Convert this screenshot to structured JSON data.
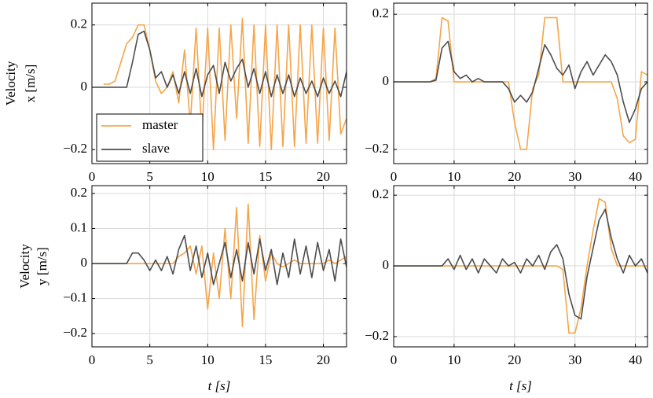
{
  "chart_data": [
    {
      "type": "line",
      "ylabel": [
        "Velocity",
        "x [m/s]"
      ],
      "legend": "lower left",
      "grid": true,
      "xlim": [
        0,
        22
      ],
      "xticks": [
        0,
        5,
        10,
        15,
        20
      ],
      "ylim": [
        -0.245,
        0.27
      ],
      "yticks": [
        {
          "value": -0.2,
          "label": "−0.2"
        },
        0,
        0.2
      ],
      "x": [
        0,
        0.5,
        1,
        1.5,
        2,
        2.5,
        3,
        3.5,
        4,
        4.5,
        5,
        5.5,
        6,
        6.5,
        7,
        7.5,
        8,
        8.5,
        9,
        9.5,
        10,
        10.5,
        11,
        11.5,
        12,
        12.5,
        13,
        13.5,
        14,
        14.5,
        15,
        15.5,
        16,
        16.5,
        17,
        17.5,
        18,
        18.5,
        19,
        19.5,
        20,
        20.5,
        21,
        21.5,
        22
      ],
      "series": [
        {
          "name": "master",
          "color": "#f5a54a",
          "values": [
            null,
            null,
            0.01,
            0.01,
            0.02,
            0.08,
            0.14,
            0.16,
            0.2,
            0.2,
            0.12,
            0.02,
            -0.02,
            0.0,
            0.05,
            -0.05,
            0.12,
            -0.12,
            0.19,
            -0.15,
            0.19,
            -0.2,
            0.19,
            -0.17,
            0.2,
            -0.1,
            0.22,
            -0.18,
            0.2,
            -0.19,
            0.2,
            -0.2,
            0.2,
            -0.19,
            0.2,
            -0.19,
            0.2,
            -0.18,
            0.2,
            -0.18,
            0.19,
            -0.17,
            0.19,
            -0.15,
            -0.1
          ]
        },
        {
          "name": "slave",
          "color": "#4d4d4d",
          "values": [
            0,
            0,
            0,
            0,
            0,
            0,
            0,
            0.08,
            0.17,
            0.18,
            0.12,
            0.03,
            0.05,
            0.0,
            0.04,
            -0.02,
            0.05,
            -0.02,
            0.06,
            -0.03,
            0.04,
            0.07,
            -0.02,
            0.08,
            0.02,
            0.06,
            0.09,
            0.0,
            0.06,
            -0.02,
            0.05,
            -0.03,
            0.04,
            -0.02,
            0.04,
            -0.03,
            0.03,
            -0.02,
            0.02,
            -0.03,
            0.03,
            -0.02,
            0.02,
            -0.03,
            0.05
          ]
        }
      ]
    },
    {
      "type": "line",
      "grid": true,
      "xlim": [
        0,
        42
      ],
      "xticks": [
        0,
        10,
        20,
        30,
        40
      ],
      "ylim": [
        -0.242,
        0.233
      ],
      "yticks": [
        {
          "value": -0.2,
          "label": "−0.2"
        },
        0,
        0.2
      ],
      "x": [
        0,
        1,
        2,
        3,
        4,
        5,
        6,
        7,
        8,
        9,
        10,
        11,
        12,
        13,
        14,
        15,
        16,
        17,
        18,
        19,
        20,
        21,
        22,
        23,
        24,
        25,
        26,
        27,
        28,
        29,
        30,
        31,
        32,
        33,
        34,
        35,
        36,
        37,
        38,
        39,
        40,
        41,
        42
      ],
      "series": [
        {
          "color": "#f5a54a",
          "values": [
            0,
            0,
            0,
            0,
            0,
            0,
            0,
            0.01,
            0.19,
            0.18,
            0,
            0,
            0,
            0,
            0,
            0,
            0,
            0,
            0,
            0,
            -0.12,
            -0.2,
            -0.2,
            -0.02,
            0.02,
            0.19,
            0.19,
            0.19,
            0,
            0,
            0,
            0,
            0,
            0,
            0,
            0,
            0,
            -0.05,
            -0.16,
            -0.18,
            -0.17,
            0.03,
            0.02
          ]
        },
        {
          "color": "#4d4d4d",
          "values": [
            0,
            0,
            0,
            0,
            0,
            0,
            0,
            0.005,
            0.1,
            0.12,
            0.03,
            0.01,
            0.02,
            0.0,
            0.01,
            0,
            0,
            0,
            0,
            -0.02,
            -0.06,
            -0.04,
            -0.06,
            -0.03,
            0.04,
            0.11,
            0.08,
            0.04,
            0.02,
            0.05,
            -0.02,
            0.03,
            0.06,
            0.02,
            0.05,
            0.08,
            0.06,
            0.02,
            -0.06,
            -0.12,
            -0.08,
            -0.02,
            0.0
          ]
        }
      ]
    },
    {
      "type": "line",
      "ylabel": [
        "Velocity",
        "y [m/s]"
      ],
      "xlabel": "t [s]",
      "grid": true,
      "xlim": [
        0,
        22
      ],
      "xticks": [
        0,
        5,
        10,
        15,
        20
      ],
      "ylim": [
        -0.238,
        0.2225
      ],
      "yticks": [
        {
          "value": -0.2,
          "label": "−0.2"
        },
        {
          "value": -0.1,
          "label": "−0.1"
        },
        0,
        0.1,
        0.2
      ],
      "x": [
        0,
        0.5,
        1,
        1.5,
        2,
        2.5,
        3,
        3.5,
        4,
        4.5,
        5,
        5.5,
        6,
        6.5,
        7,
        7.5,
        8,
        8.5,
        9,
        9.5,
        10,
        10.5,
        11,
        11.5,
        12,
        12.5,
        13,
        13.5,
        14,
        14.5,
        15,
        15.5,
        16,
        16.5,
        17,
        17.5,
        18,
        18.5,
        19,
        19.5,
        20,
        20.5,
        21,
        21.5,
        22
      ],
      "series": [
        {
          "color": "#f5a54a",
          "values": [
            0,
            0,
            0,
            0,
            0,
            0,
            0,
            0,
            0,
            0,
            0,
            0,
            0,
            0,
            0,
            0.02,
            0.03,
            0.05,
            -0.03,
            0.05,
            -0.13,
            0.03,
            -0.1,
            0.1,
            -0.1,
            0.16,
            -0.18,
            0.17,
            -0.16,
            0.08,
            -0.05,
            0.03,
            0,
            -0.01,
            0,
            0.01,
            0,
            0,
            0,
            0,
            0,
            0.01,
            0,
            0.01,
            0.02
          ]
        },
        {
          "color": "#4d4d4d",
          "values": [
            0,
            0,
            0,
            0,
            0,
            0,
            0,
            0.03,
            0.03,
            0.01,
            -0.02,
            0.01,
            -0.02,
            0.02,
            -0.03,
            0.04,
            0.08,
            -0.02,
            0.05,
            -0.04,
            0.03,
            -0.06,
            0.0,
            0.06,
            -0.04,
            0.04,
            -0.05,
            0.06,
            -0.03,
            0.07,
            -0.02,
            0.04,
            -0.06,
            0.03,
            -0.04,
            0.07,
            -0.03,
            0.05,
            -0.04,
            0.06,
            -0.02,
            0.04,
            -0.05,
            0.07,
            -0.01
          ]
        }
      ]
    },
    {
      "type": "line",
      "xlabel": "t [s]",
      "grid": true,
      "xlim": [
        0,
        42
      ],
      "xticks": [
        0,
        10,
        20,
        30,
        40
      ],
      "ylim": [
        -0.229,
        0.227
      ],
      "yticks": [
        {
          "value": -0.2,
          "label": "−0.2"
        },
        0,
        0.2
      ],
      "x": [
        0,
        1,
        2,
        3,
        4,
        5,
        6,
        7,
        8,
        9,
        10,
        11,
        12,
        13,
        14,
        15,
        16,
        17,
        18,
        19,
        20,
        21,
        22,
        23,
        24,
        25,
        26,
        27,
        28,
        29,
        30,
        31,
        32,
        33,
        34,
        35,
        36,
        37,
        38,
        39,
        40,
        41,
        42
      ],
      "series": [
        {
          "color": "#f5a54a",
          "values": [
            0,
            0,
            0,
            0,
            0,
            0,
            0,
            0,
            0,
            0,
            0,
            0,
            0,
            0,
            0,
            0,
            0,
            0,
            0,
            0,
            0,
            0,
            0,
            0,
            0,
            0,
            0,
            0,
            -0.01,
            -0.19,
            -0.19,
            -0.12,
            0,
            0.1,
            0.19,
            0.18,
            0.05,
            0,
            0,
            0,
            0,
            0,
            0
          ]
        },
        {
          "color": "#4d4d4d",
          "values": [
            0,
            0,
            0,
            0,
            0,
            0,
            0,
            0,
            0,
            0.02,
            -0.01,
            0.03,
            -0.01,
            0.02,
            -0.02,
            0.02,
            0,
            -0.02,
            0.02,
            0,
            0.01,
            -0.02,
            0.02,
            0,
            0.03,
            -0.01,
            0.04,
            0.06,
            0.02,
            -0.08,
            -0.14,
            -0.15,
            -0.03,
            0.05,
            0.13,
            0.16,
            0.08,
            0.02,
            -0.02,
            0.03,
            0,
            0.02,
            -0.02
          ]
        }
      ]
    }
  ]
}
